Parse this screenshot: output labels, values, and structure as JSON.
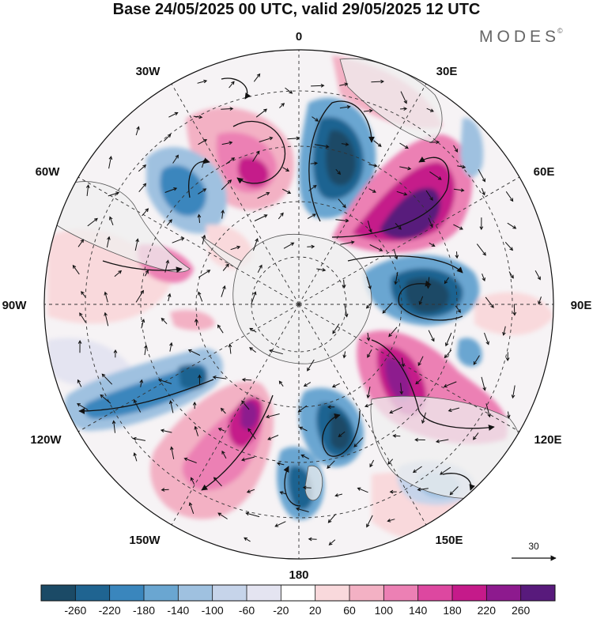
{
  "title": "Base 24/05/2025 00 UTC, valid 29/05/2025 12 UTC",
  "brand": "MODES",
  "brand_mark": "©",
  "longitude_labels": {
    "n0": "0",
    "n30e": "30E",
    "n60e": "60E",
    "n90e": "90E",
    "n120e": "120E",
    "n150e": "150E",
    "n180": "180",
    "n150w": "150W",
    "n120w": "120W",
    "n90w": "90W",
    "n60w": "60W",
    "n30w": "30W"
  },
  "reference_vector": {
    "value": "30"
  },
  "colorbar": {
    "ticks": [
      "-260",
      "-220",
      "-180",
      "-140",
      "-100",
      "-60",
      "-20",
      "20",
      "60",
      "100",
      "140",
      "180",
      "220",
      "260"
    ],
    "colors": [
      "#1b4a66",
      "#1f6491",
      "#3a86bd",
      "#6aa6d1",
      "#9fc1e0",
      "#c6d4ea",
      "#e4e4f1",
      "#ffffff",
      "#f9d9dc",
      "#f3b1c4",
      "#ec80b4",
      "#dd47a0",
      "#c51a8a",
      "#8d1a8e",
      "#581a7c"
    ]
  },
  "field": {
    "type": "polar anomaly map",
    "features": [
      {
        "id": "neg-a",
        "sign": "negative",
        "level": -260,
        "location": "15E"
      },
      {
        "id": "pos-a",
        "sign": "positive",
        "level": 260,
        "location": "45E"
      },
      {
        "id": "neg-b",
        "sign": "negative",
        "level": -260,
        "location": "80E"
      },
      {
        "id": "pos-b",
        "sign": "positive",
        "level": 220,
        "location": "120E"
      },
      {
        "id": "neg-c",
        "sign": "negative",
        "level": -260,
        "location": "165E"
      },
      {
        "id": "pos-c",
        "sign": "positive",
        "level": 220,
        "location": "150W"
      },
      {
        "id": "neg-d",
        "sign": "negative",
        "level": -180,
        "location": "115W"
      },
      {
        "id": "pos-d",
        "sign": "positive",
        "level": 180,
        "location": "30W"
      },
      {
        "id": "neg-e",
        "sign": "negative",
        "level": -180,
        "location": "45W"
      },
      {
        "id": "neg-f",
        "sign": "negative",
        "level": -140,
        "location": "175E"
      },
      {
        "id": "neg-g",
        "sign": "negative",
        "level": -100,
        "location": "140E"
      },
      {
        "id": "pos-e",
        "sign": "positive",
        "level": 100,
        "location": "70W"
      }
    ]
  }
}
